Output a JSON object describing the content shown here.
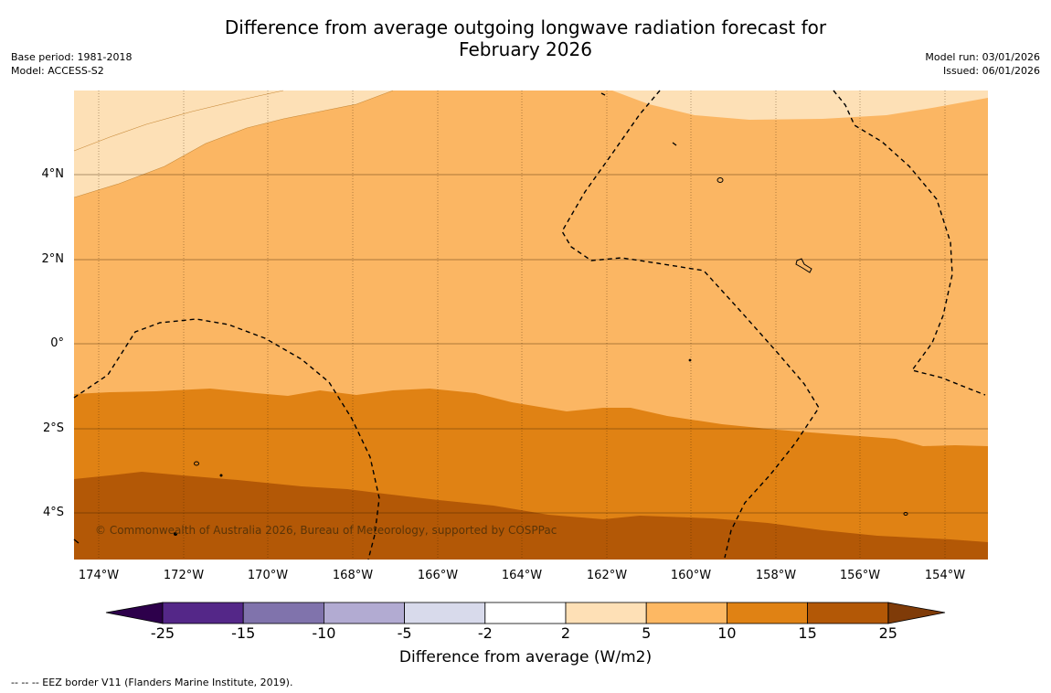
{
  "title": {
    "line1": "Difference from average outgoing longwave radiation forecast for",
    "line2": "February 2026"
  },
  "meta_left": {
    "base_period": "Base period: 1981-2018",
    "model": "Model: ACCESS-S2"
  },
  "meta_right": {
    "model_run": "Model run: 03/01/2026",
    "issued": "Issued: 06/01/2026"
  },
  "map": {
    "lat_labels": [
      "4°N",
      "2°N",
      "0°",
      "2°S",
      "4°S"
    ],
    "lon_labels": [
      "174°W",
      "172°W",
      "170°W",
      "168°W",
      "166°W",
      "164°W",
      "162°W",
      "160°W",
      "158°W",
      "156°W",
      "154°W"
    ],
    "copyright": "© Commonwealth of Australia 2026, Bureau of Meteorology, supported by COSPPac",
    "colors": {
      "band_2_5": "#fde0b6",
      "band_5_10": "#fbb663",
      "band_10_15": "#e08214",
      "band_15_25": "#b35806",
      "eez_line": "#000000",
      "grid": "#000000"
    }
  },
  "colorbar": {
    "title": "Difference from average (W/m2)",
    "ticks": [
      "-25",
      "-15",
      "-10",
      "-5",
      "-2",
      "2",
      "5",
      "10",
      "15",
      "25"
    ],
    "colors": [
      "#2d004b",
      "#542788",
      "#8073ac",
      "#b2abd2",
      "#d8daeb",
      "#ffffff",
      "#fee0b6",
      "#fdb863",
      "#e08214",
      "#b35806",
      "#7f3b08"
    ]
  },
  "footer": "--  --  -- EEZ border V11 (Flanders Marine Institute, 2019)."
}
